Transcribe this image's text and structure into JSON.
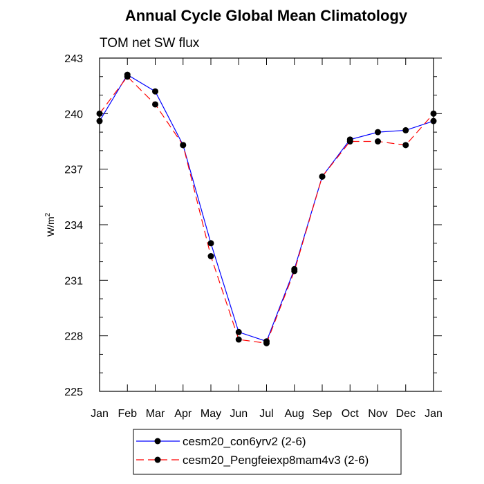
{
  "chart_data": {
    "type": "line",
    "title": "Annual Cycle Global Mean Climatology",
    "subtitle": "TOM net SW flux",
    "ylabel": "W/m",
    "ylabel_superscript": "2",
    "xlabel": "",
    "categories": [
      "Jan",
      "Feb",
      "Mar",
      "Apr",
      "May",
      "Jun",
      "Jul",
      "Aug",
      "Sep",
      "Oct",
      "Nov",
      "Dec",
      "Jan"
    ],
    "ylim": [
      225,
      243
    ],
    "yticks": [
      225,
      228,
      231,
      234,
      237,
      240,
      243
    ],
    "ytick_labels": [
      "225",
      "228",
      "231",
      "234",
      "237",
      "240",
      "243"
    ],
    "grid": false,
    "legend_position": "bottom-center",
    "series": [
      {
        "name": "cesm20_con6yrv2 (2-6)",
        "color": "#0000ff",
        "line_style": "solid",
        "marker": "filled-circle",
        "values": [
          239.6,
          242.1,
          241.2,
          238.3,
          233.0,
          228.2,
          227.7,
          231.6,
          236.6,
          238.6,
          239.0,
          239.1,
          239.6
        ]
      },
      {
        "name": "cesm20_Pengfeiexp8mam4v3 (2-6)",
        "color": "#ff0000",
        "line_style": "dashed",
        "marker": "filled-circle",
        "values": [
          240.0,
          242.0,
          240.5,
          238.3,
          232.3,
          227.8,
          227.6,
          231.5,
          236.6,
          238.5,
          238.5,
          238.3,
          240.0
        ]
      }
    ]
  }
}
